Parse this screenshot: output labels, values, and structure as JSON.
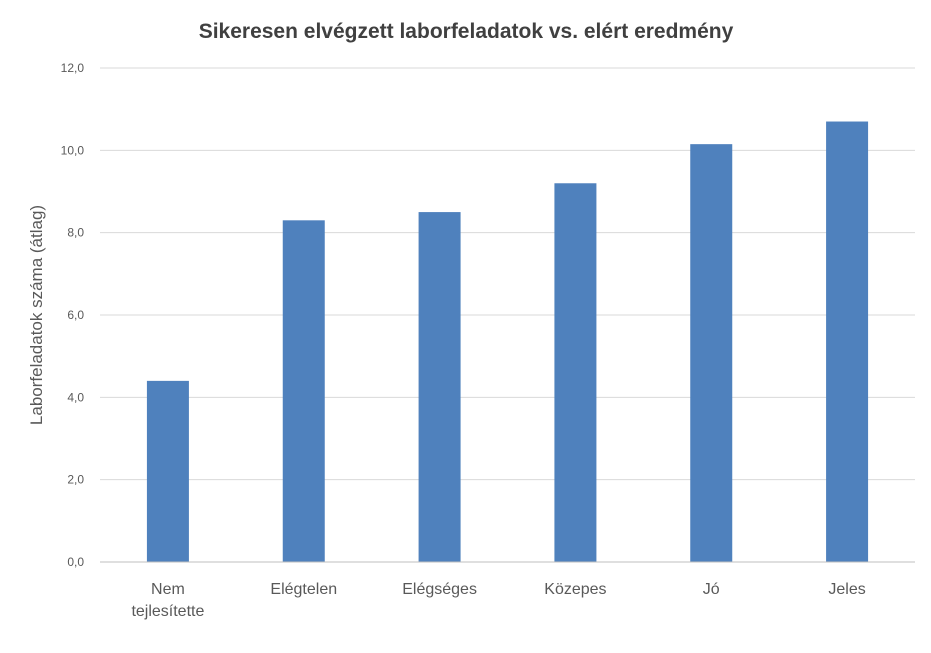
{
  "chart_data": {
    "type": "bar",
    "title": "Sikeresen elvégzett laborfeladatok vs. elért eredmény",
    "xlabel": "",
    "ylabel": "Laborfeladatok száma (átlag)",
    "categories": [
      "Nem tejlesítette",
      "Elégtelen",
      "Elégséges",
      "Közepes",
      "Jó",
      "Jeles"
    ],
    "category_lines": [
      [
        "Nem",
        "tejlesítette"
      ],
      [
        "Elégtelen"
      ],
      [
        "Elégséges"
      ],
      [
        "Közepes"
      ],
      [
        "Jó"
      ],
      [
        "Jeles"
      ]
    ],
    "values": [
      4.4,
      8.3,
      8.5,
      9.2,
      10.15,
      10.7
    ],
    "ylim": [
      0,
      12
    ],
    "yticks": [
      0,
      2,
      4,
      6,
      8,
      10,
      12
    ],
    "ytick_labels": [
      "0,0",
      "2,0",
      "4,0",
      "6,0",
      "8,0",
      "10,0",
      "12,0"
    ],
    "grid": true,
    "legend": "none",
    "bar_color": "#4f81bd"
  }
}
